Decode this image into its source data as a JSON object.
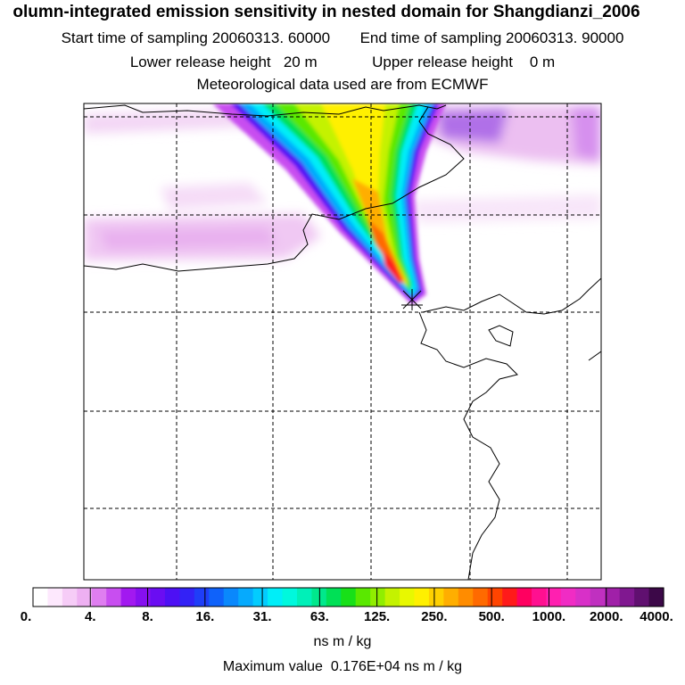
{
  "header": {
    "title": "olumn-integrated emission sensitivity in nested domain for Shangdianzi_2006",
    "start_label": "Start time of sampling",
    "start_value": "20060313. 60000",
    "end_label": "End time of sampling",
    "end_value": "20060313. 90000",
    "lower_label": "Lower release height",
    "lower_value": "20 m",
    "upper_label": "Upper release height",
    "upper_value": "0 m",
    "met_line": "Meteorological data used are from ECMWF"
  },
  "colorbar": {
    "tick_labels": [
      "0.",
      "4.",
      "8.",
      "16.",
      "31.",
      "63.",
      "125.",
      "250.",
      "500.",
      "1000.",
      "2000.",
      "4000."
    ],
    "colors": [
      "#ffffff",
      "#fde8fd",
      "#f6ccf7",
      "#eeb0f2",
      "#df7ef0",
      "#c84ef0",
      "#a219f0",
      "#8610f0",
      "#6a0df2",
      "#4d10f4",
      "#3322f6",
      "#1f3ef8",
      "#0f62fa",
      "#0a88fc",
      "#06aafd",
      "#03ccfe",
      "#00eef8",
      "#00f8dd",
      "#00f0b8",
      "#00e88c",
      "#00e056",
      "#18e018",
      "#5ae800",
      "#90ee00",
      "#c4f200",
      "#e8f800",
      "#fff000",
      "#ffd000",
      "#ffae00",
      "#ff8c00",
      "#ff6a00",
      "#ff4400",
      "#ff1a1a",
      "#ff0060",
      "#ff1090",
      "#ff20b0",
      "#f02cc4",
      "#d830c8",
      "#c030c0",
      "#a020a8",
      "#801890",
      "#601070",
      "#3c0848"
    ],
    "units": "ns m / kg"
  },
  "footer": {
    "max_label": "Maximum value",
    "max_value": "0.176E+04",
    "max_units": "ns m / kg"
  },
  "map": {
    "release_site": "Shangdianzi",
    "grid": "on"
  }
}
